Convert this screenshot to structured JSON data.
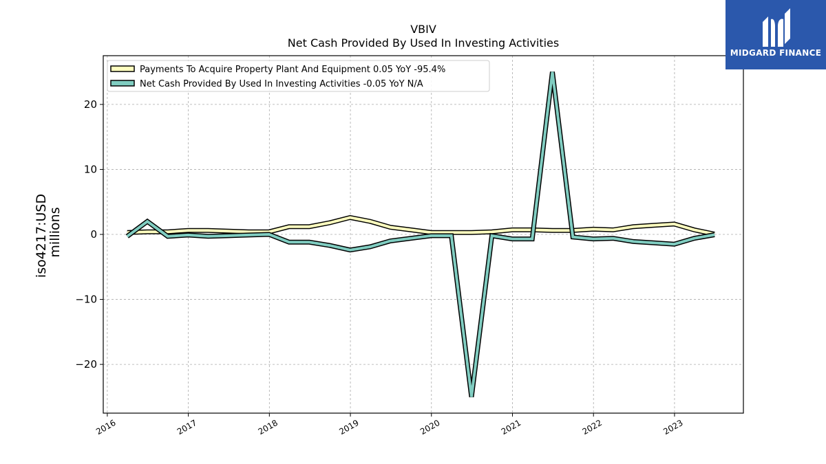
{
  "chart_data": {
    "type": "line",
    "title": "VBIV",
    "subtitle": "Net Cash Provided By Used In Investing Activities",
    "ylabel_line1": "iso4217:USD",
    "ylabel_line2": "millions",
    "xlabel": "",
    "xlim": [
      2015.95,
      2023.85
    ],
    "ylim": [
      -27.5,
      27.5
    ],
    "grid": true,
    "legend_position": "top-left",
    "x_ticks": [
      2016,
      2017,
      2018,
      2019,
      2020,
      2021,
      2022,
      2023
    ],
    "x_tick_labels": [
      "2016",
      "2017",
      "2018",
      "2019",
      "2020",
      "2021",
      "2022",
      "2023"
    ],
    "y_ticks": [
      20,
      10,
      0,
      -10,
      -20
    ],
    "y_tick_labels": [
      "20",
      "10",
      "0",
      "−10",
      "−20"
    ],
    "series": [
      {
        "name": "Payments To Acquire Property Plant And Equipment  0.05 YoY -95.4%",
        "color": "#ffffbf",
        "x": [
          "2016-03-31",
          "2016-06-30",
          "2016-09-30",
          "2016-12-31",
          "2017-03-31",
          "2017-06-30",
          "2017-09-30",
          "2017-12-31",
          "2018-03-31",
          "2018-06-30",
          "2018-09-30",
          "2018-12-31",
          "2019-03-31",
          "2019-06-30",
          "2019-09-30",
          "2019-12-31",
          "2020-03-31",
          "2020-06-30",
          "2020-09-30",
          "2020-12-31",
          "2021-03-31",
          "2021-06-30",
          "2021-09-30",
          "2021-12-31",
          "2022-03-31",
          "2022-06-30",
          "2022-09-30",
          "2022-12-31",
          "2023-03-31",
          "2023-06-30"
        ],
        "values": [
          0.3,
          0.4,
          0.4,
          0.6,
          0.6,
          0.5,
          0.4,
          0.4,
          1.2,
          1.2,
          1.8,
          2.6,
          2.0,
          1.1,
          0.7,
          0.3,
          0.3,
          0.3,
          0.4,
          0.7,
          0.7,
          0.6,
          0.6,
          0.8,
          0.7,
          1.2,
          1.4,
          1.6,
          0.7,
          0.05
        ]
      },
      {
        "name": "Net Cash Provided By Used In Investing Activities  -0.05 YoY N/A",
        "color": "#80cdc1",
        "x": [
          "2016-03-31",
          "2016-06-30",
          "2016-09-30",
          "2016-12-31",
          "2017-03-31",
          "2017-06-30",
          "2017-09-30",
          "2017-12-31",
          "2018-03-31",
          "2018-06-30",
          "2018-09-30",
          "2018-12-31",
          "2019-03-31",
          "2019-06-30",
          "2019-09-30",
          "2019-12-31",
          "2020-03-31",
          "2020-06-30",
          "2020-09-30",
          "2020-12-31",
          "2021-03-31",
          "2021-06-30",
          "2021-09-30",
          "2021-12-31",
          "2022-03-31",
          "2022-06-30",
          "2022-09-30",
          "2022-12-31",
          "2023-03-31",
          "2023-06-30"
        ],
        "values": [
          -0.3,
          2.0,
          -0.3,
          -0.1,
          -0.3,
          -0.2,
          -0.1,
          0.0,
          -1.2,
          -1.2,
          -1.7,
          -2.4,
          -1.9,
          -1.0,
          -0.6,
          -0.2,
          -0.2,
          -25.0,
          -0.2,
          -0.7,
          -0.7,
          25.0,
          -0.4,
          -0.7,
          -0.6,
          -1.1,
          -1.3,
          -1.5,
          -0.6,
          -0.05
        ]
      }
    ]
  },
  "logo": {
    "text": "MIDGARD FINANCE",
    "background": "#2b58ac"
  }
}
